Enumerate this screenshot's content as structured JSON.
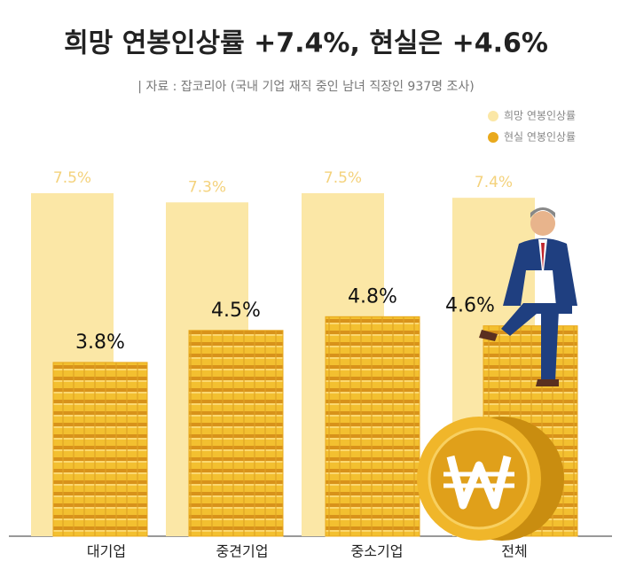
{
  "chart_data": {
    "type": "bar",
    "title": "희망 연봉인상률 +7.4%, 현실은 +4.6%",
    "subtitle": "| 자료 : 잡코리아 (국내 기업 재직 중인 남녀 직장인  937명 조사)",
    "categories": [
      "대기업",
      "중견기업",
      "중소기업",
      "전체"
    ],
    "series": [
      {
        "name": "희망 연봉인상률",
        "color": "#fbe7a6",
        "values": [
          7.5,
          7.3,
          7.5,
          7.4
        ],
        "value_labels": [
          "7.5%",
          "7.3%",
          "7.5%",
          "7.4%"
        ]
      },
      {
        "name": "현실 연봉인상률",
        "color": "#e9a91c",
        "values": [
          3.8,
          4.5,
          4.8,
          4.6
        ],
        "value_labels": [
          "3.8%",
          "4.5%",
          "4.8%",
          "4.6%"
        ]
      }
    ]
  }
}
